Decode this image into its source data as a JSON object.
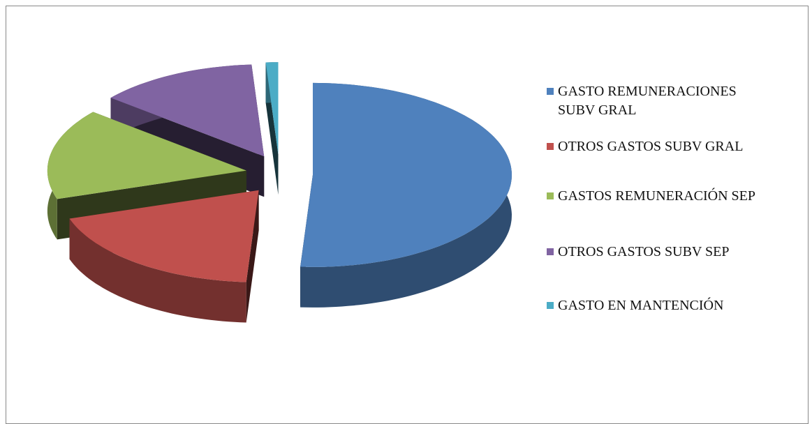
{
  "chart_data": {
    "type": "pie3d",
    "categories": [
      "GASTO REMUNERACIONES SUBV GRAL",
      "OTROS GASTOS SUBV GRAL",
      "GASTOS REMUNERACIÓN SEP",
      "OTROS GASTOS SUBV SEP",
      "GASTO EN MANTENCIÓN"
    ],
    "values": [
      51,
      19,
      16,
      13,
      1
    ],
    "colors": [
      "#4f81bd",
      "#c0504d",
      "#9bbb59",
      "#8064a2",
      "#4bacc6"
    ],
    "legend": "right"
  }
}
